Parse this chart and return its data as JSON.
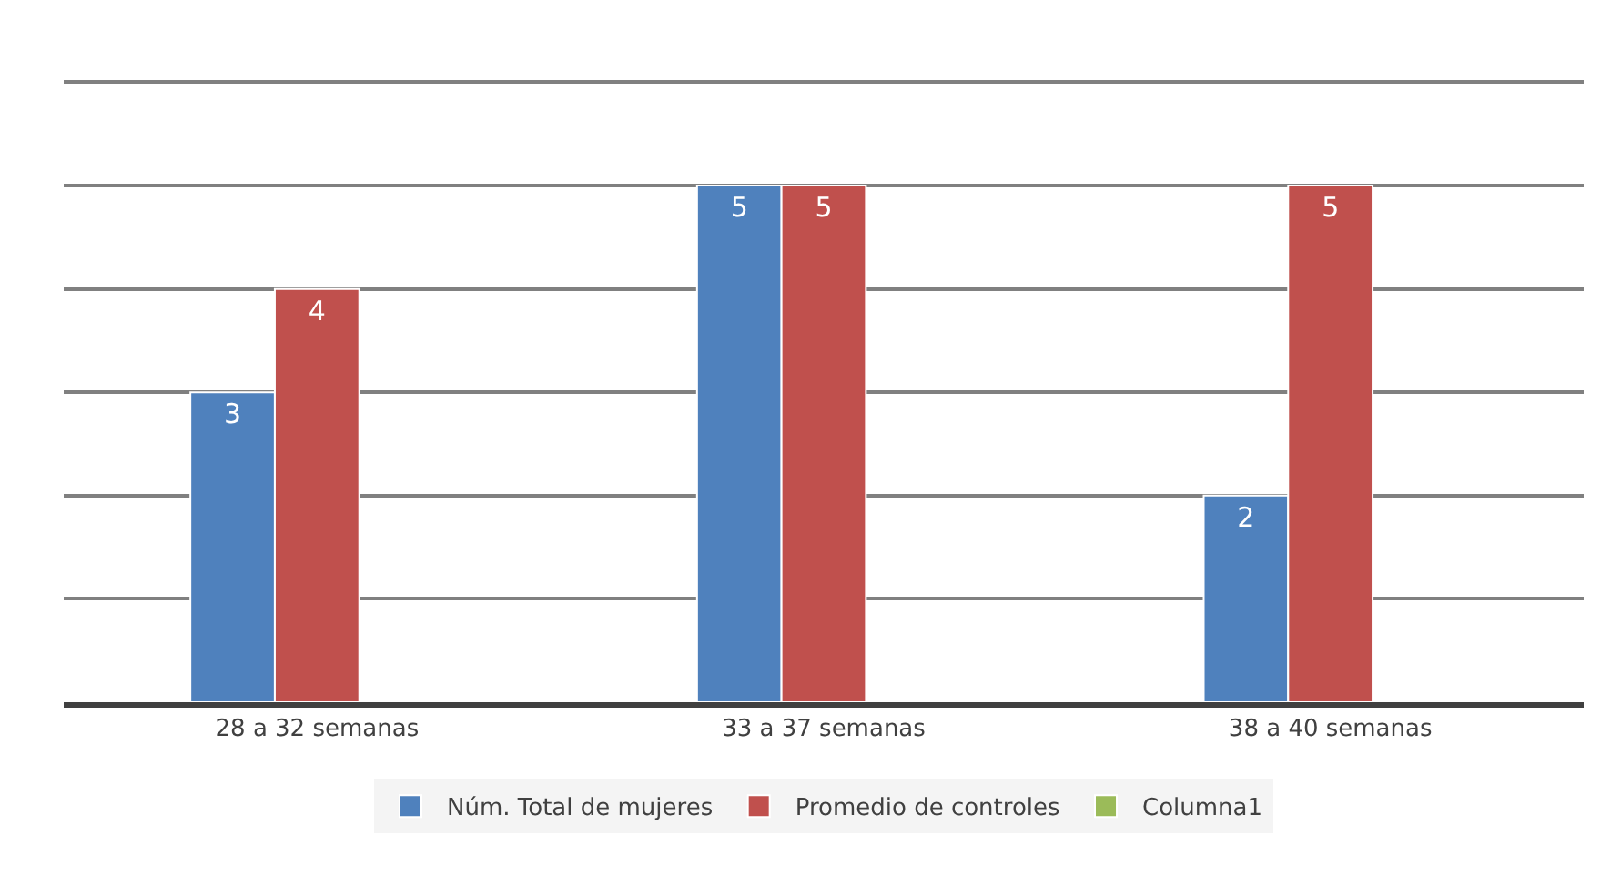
{
  "chart_data": {
    "type": "bar",
    "categories": [
      "28 a 32 semanas",
      "33 a 37 semanas",
      "38 a 40 semanas"
    ],
    "series": [
      {
        "name": "Núm. Total de mujeres",
        "color": "#4f81bd",
        "values": [
          3,
          5,
          2
        ]
      },
      {
        "name": "Promedio de controles",
        "color": "#c0504d",
        "values": [
          4,
          5,
          5
        ]
      },
      {
        "name": "Columna1",
        "color": "#9bbb59",
        "values": [
          null,
          null,
          null
        ]
      }
    ],
    "yticks": [
      {
        "value": 0,
        "label": null
      },
      {
        "value": 1,
        "label": null
      },
      {
        "value": 2,
        "label": null
      },
      {
        "value": 3,
        "label": null
      },
      {
        "value": 4,
        "label": null
      },
      {
        "value": 5,
        "label": null
      },
      {
        "value": 6,
        "label": null
      }
    ],
    "tick_labels": "x",
    "grid": "y",
    "legend": "bottom",
    "data_labels": true
  }
}
